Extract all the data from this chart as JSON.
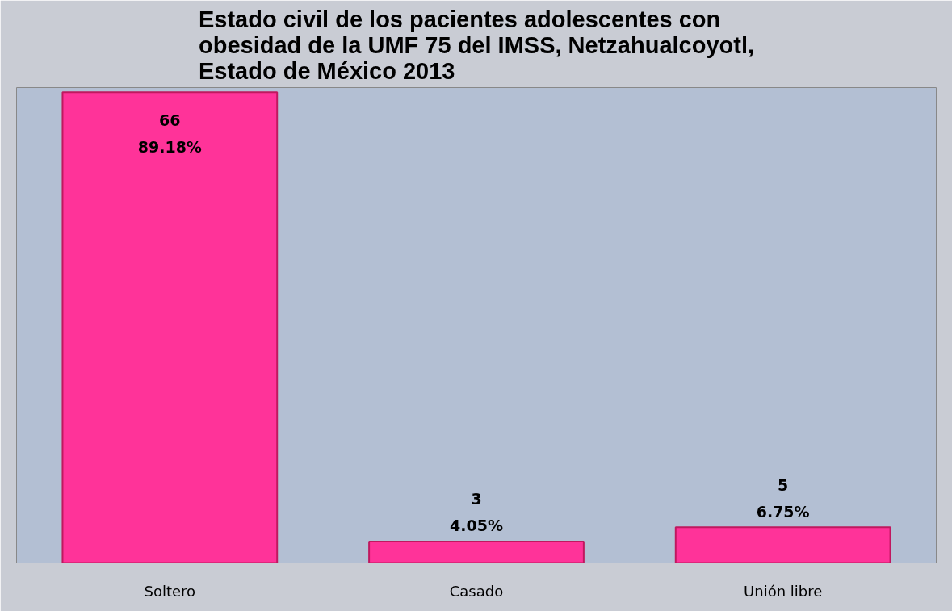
{
  "chart_data": {
    "type": "bar",
    "title": "Estado civil de los pacientes adolescentes con\nobesidad de la UMF 75 del IMSS, Netzahualcoyotl,\nEstado de México 2013",
    "categories": [
      "Soltero",
      "Casado",
      "Unión libre"
    ],
    "values": [
      66,
      3,
      5
    ],
    "color": "#ff3399",
    "value_labels": [
      "66\n89.18%",
      "3\n4.05%",
      "5\n6.75%"
    ],
    "grid": false
  }
}
